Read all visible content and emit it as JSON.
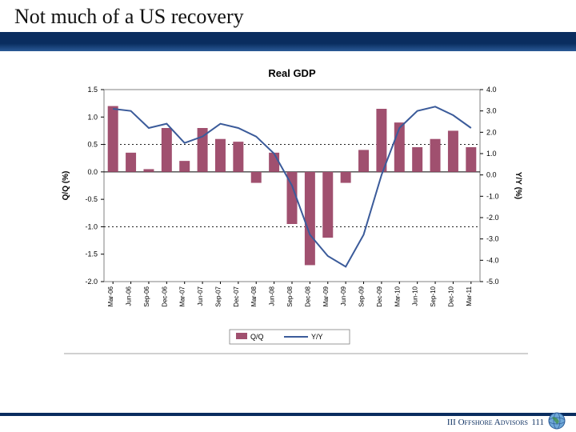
{
  "slide": {
    "title": "Not much of a US recovery",
    "footer_text": "III Offshore Advisors",
    "page_num": "111"
  },
  "chart": {
    "type": "bar+line",
    "title": "Real GDP",
    "title_fontsize": 13,
    "title_weight": "bold",
    "title_color": "#000000",
    "background_color": "#ffffff",
    "plot_border_color": "#808080",
    "grid_color": "#000000",
    "left_axis": {
      "label": "Q/Q (%)",
      "label_fontsize": 10,
      "label_color": "#000000",
      "min": -2.0,
      "max": 1.5,
      "tick_step": 0.5,
      "tick_labels": [
        "-2.0",
        "-1.5",
        "-1.0",
        "-0.5",
        "0.0",
        "0.5",
        "1.0",
        "1.5"
      ],
      "tick_fontsize": 9
    },
    "right_axis": {
      "label": "Y/Y (%)",
      "label_fontsize": 10,
      "label_color": "#000000",
      "min": -5.0,
      "max": 4.0,
      "tick_step": 1.0,
      "tick_labels": [
        "-5.0",
        "-4.0",
        "-3.0",
        "-2.0",
        "-1.0",
        "0.0",
        "1.0",
        "2.0",
        "3.0",
        "4.0"
      ],
      "tick_fontsize": 9
    },
    "x_axis": {
      "labels": [
        "Mar-06",
        "Jun-06",
        "Sep-06",
        "Dec-06",
        "Mar-07",
        "Jun-07",
        "Sep-07",
        "Dec-07",
        "Mar-08",
        "Jun-08",
        "Sep-08",
        "Dec-08",
        "Mar-09",
        "Jun-09",
        "Sep-09",
        "Dec-09",
        "Mar-10",
        "Jun-10",
        "Sep-10",
        "Dec-10",
        "Mar-11"
      ],
      "label_fontsize": 8,
      "label_rotation": -90
    },
    "bars": {
      "series_name": "Q/Q",
      "color": "#a0506f",
      "width_ratio": 0.58,
      "values": [
        1.2,
        0.35,
        0.05,
        0.8,
        0.2,
        0.8,
        0.6,
        0.55,
        -0.2,
        0.35,
        -0.95,
        -1.7,
        -1.2,
        -0.2,
        0.4,
        1.15,
        0.9,
        0.45,
        0.6,
        0.75,
        0.45
      ]
    },
    "line": {
      "series_name": "Y/Y",
      "color": "#3b5b9a",
      "width": 2,
      "values": [
        3.1,
        3.0,
        2.2,
        2.4,
        1.5,
        1.8,
        2.4,
        2.2,
        1.8,
        1.0,
        -0.5,
        -2.8,
        -3.8,
        -4.3,
        -2.8,
        0.0,
        2.2,
        3.0,
        3.2,
        2.8,
        2.2
      ]
    },
    "reference_lines": {
      "color": "#000000",
      "dash": "2,3",
      "left_values": [
        0.5,
        -1.0
      ]
    },
    "legend": {
      "items": [
        "Q/Q",
        "Y/Y"
      ],
      "box_border": "#808080",
      "fontsize": 9
    }
  }
}
